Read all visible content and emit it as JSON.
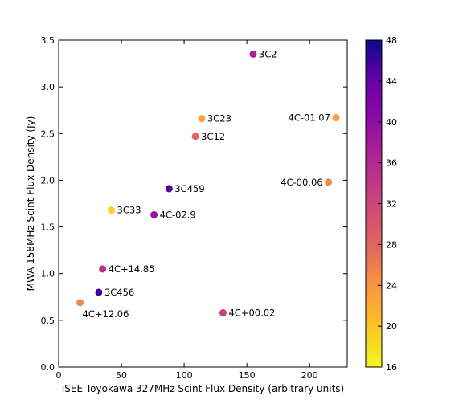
{
  "chart_data": {
    "type": "scatter",
    "title": "",
    "xlabel": "ISEE Toyokawa 327MHz Scint Flux Density (arbitrary units)",
    "ylabel": "MWA 158MHz Scint Flux Density (Jy)",
    "xlim": [
      0,
      230
    ],
    "ylim": [
      0.0,
      3.5
    ],
    "xticks": [
      0,
      50,
      100,
      150,
      200
    ],
    "yticks": [
      0.0,
      0.5,
      1.0,
      1.5,
      2.0,
      2.5,
      3.0,
      3.5
    ],
    "grid": false,
    "colorbar": {
      "colormap": "plasma_r",
      "min": 16,
      "max": 48,
      "ticks": [
        16,
        20,
        24,
        28,
        32,
        36,
        40,
        44,
        48
      ]
    },
    "points": [
      {
        "label": "3C2",
        "x": 155,
        "y": 3.35,
        "c": 37,
        "label_pos": "right"
      },
      {
        "label": "4C-01.07",
        "x": 221,
        "y": 2.67,
        "c": 23,
        "label_pos": "left"
      },
      {
        "label": "3C23",
        "x": 114,
        "y": 2.66,
        "c": 23,
        "label_pos": "right"
      },
      {
        "label": "3C12",
        "x": 109,
        "y": 2.47,
        "c": 28,
        "label_pos": "right"
      },
      {
        "label": "4C-00.06",
        "x": 215,
        "y": 1.98,
        "c": 25,
        "label_pos": "left"
      },
      {
        "label": "3C459",
        "x": 88,
        "y": 1.91,
        "c": 45,
        "label_pos": "right"
      },
      {
        "label": "3C33",
        "x": 42,
        "y": 1.68,
        "c": 19,
        "label_pos": "right"
      },
      {
        "label": "4C-02.9",
        "x": 76,
        "y": 1.63,
        "c": 39,
        "label_pos": "right"
      },
      {
        "label": "4C+14.85",
        "x": 35,
        "y": 1.05,
        "c": 35,
        "label_pos": "right"
      },
      {
        "label": "3C456",
        "x": 32,
        "y": 0.8,
        "c": 46,
        "label_pos": "right"
      },
      {
        "label": "4C+12.06",
        "x": 17,
        "y": 0.69,
        "c": 25,
        "label_pos": "below"
      },
      {
        "label": "4C+00.02",
        "x": 131,
        "y": 0.58,
        "c": 33,
        "label_pos": "right"
      }
    ]
  }
}
